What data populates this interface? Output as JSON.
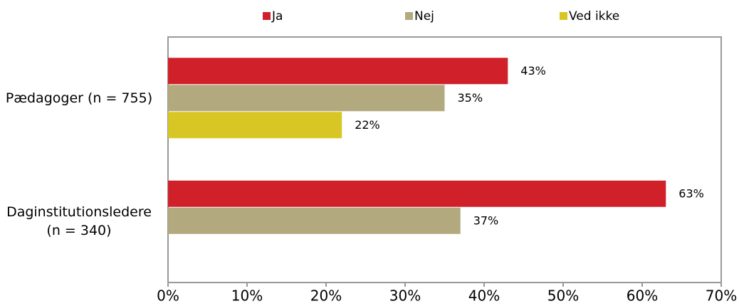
{
  "chart_data": {
    "type": "bar",
    "orientation": "horizontal",
    "categories": [
      "Pædagoger (n = 755)",
      "Daginstitutionsledere (n = 340)"
    ],
    "series": [
      {
        "name": "Ja",
        "color": "#d0202a",
        "values": [
          43,
          63
        ],
        "value_labels": [
          "43%",
          "63%"
        ]
      },
      {
        "name": "Nej",
        "color": "#b3a97f",
        "values": [
          35,
          37
        ],
        "value_labels": [
          "35%",
          "37%"
        ]
      },
      {
        "name": "Ved ikke",
        "color": "#d8c624",
        "values": [
          22,
          null
        ],
        "value_labels": [
          "22%",
          null
        ]
      }
    ],
    "xlim": [
      0,
      70
    ],
    "xticks": [
      {
        "value": 0,
        "label": "0%"
      },
      {
        "value": 10,
        "label": "10%"
      },
      {
        "value": 20,
        "label": "20%"
      },
      {
        "value": 30,
        "label": "30%"
      },
      {
        "value": 40,
        "label": "40%"
      },
      {
        "value": 50,
        "label": "50%"
      },
      {
        "value": 60,
        "label": "60%"
      },
      {
        "value": 70,
        "label": "70%"
      }
    ],
    "legend": "top",
    "grid": false
  }
}
